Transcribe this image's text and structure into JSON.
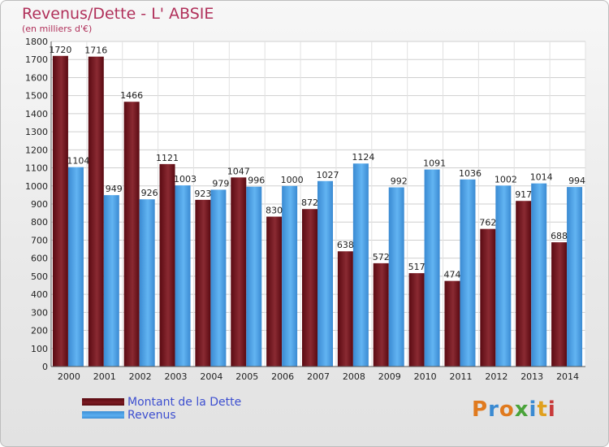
{
  "header": {
    "title": "Revenus/Dette - L' ABSIE",
    "subtitle": "(en milliers d'€)"
  },
  "legend": {
    "dette_label": "Montant de la Dette",
    "revenus_label": "Revenus"
  },
  "logo": {
    "text": "Proxiti"
  },
  "colors": {
    "dette": "#6e1520",
    "revenus": "#4ea3e8",
    "title": "#b0305a",
    "legend_text": "#3d4fd0"
  },
  "chart_data": {
    "type": "bar",
    "categories": [
      "2000",
      "2001",
      "2002",
      "2003",
      "2004",
      "2005",
      "2006",
      "2007",
      "2008",
      "2009",
      "2010",
      "2011",
      "2012",
      "2013",
      "2014"
    ],
    "series": [
      {
        "name": "Montant de la Dette",
        "values": [
          1720,
          1716,
          1466,
          1121,
          923,
          1047,
          830,
          872,
          638,
          572,
          517,
          474,
          762,
          917,
          688
        ]
      },
      {
        "name": "Revenus",
        "values": [
          1104,
          949,
          926,
          1003,
          979,
          996,
          1000,
          1027,
          1124,
          992,
          1091,
          1036,
          1002,
          1014,
          994
        ]
      }
    ],
    "ylim": [
      0,
      1800
    ],
    "yticks": [
      0,
      100,
      200,
      300,
      400,
      500,
      600,
      700,
      800,
      900,
      1000,
      1100,
      1200,
      1300,
      1400,
      1500,
      1600,
      1700,
      1800
    ],
    "grid": true,
    "legend_position": "bottom-left"
  }
}
